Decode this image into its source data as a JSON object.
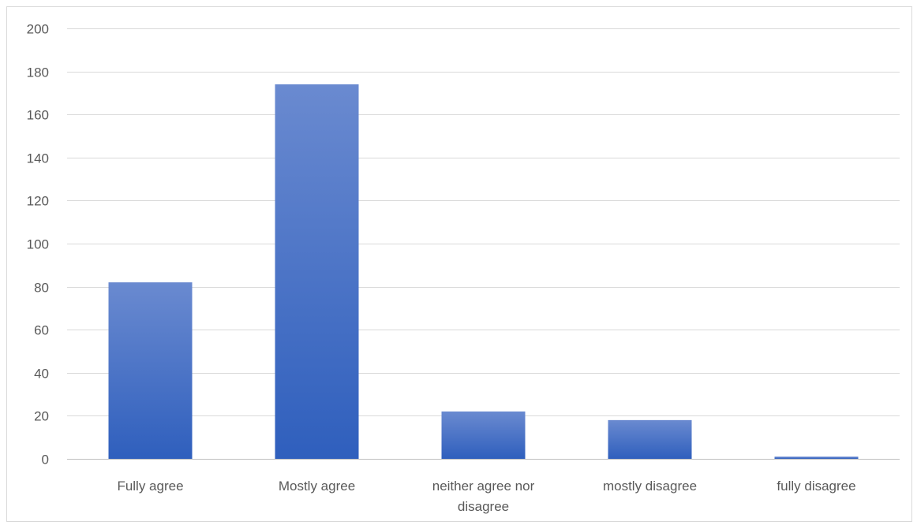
{
  "chart_data": {
    "type": "bar",
    "categories": [
      "Fully agree",
      "Mostly agree",
      "neither agree nor disagree",
      "mostly disagree",
      "fully disagree"
    ],
    "category_lines": [
      [
        "Fully agree"
      ],
      [
        "Mostly agree"
      ],
      [
        "neither agree nor",
        "disagree"
      ],
      [
        "mostly disagree"
      ],
      [
        "fully disagree"
      ]
    ],
    "values": [
      82,
      174,
      22,
      18,
      1
    ],
    "ylim": [
      0,
      200
    ],
    "yticks": [
      0,
      20,
      40,
      60,
      80,
      100,
      120,
      140,
      160,
      180,
      200
    ],
    "grid": true,
    "legend": "none",
    "title": "",
    "xlabel": "",
    "ylabel": "",
    "colors": {
      "bar_top": "#6a8ad0",
      "bar_bottom": "#2f5fbd",
      "grid": "#d9d9d9",
      "text": "#595959"
    }
  }
}
